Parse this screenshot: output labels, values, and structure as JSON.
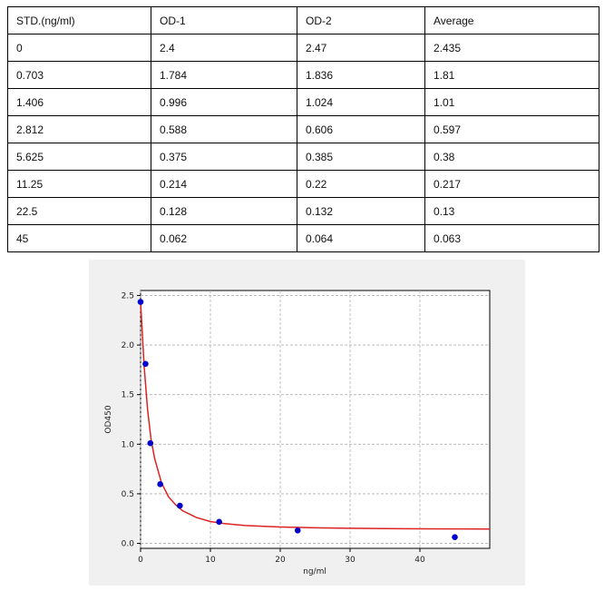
{
  "table": {
    "headers": [
      "STD.(ng/ml)",
      "OD-1",
      "OD-2",
      "Average"
    ],
    "rows": [
      [
        "0",
        "2.4",
        "2.47",
        "2.435"
      ],
      [
        "0.703",
        "1.784",
        "1.836",
        "1.81"
      ],
      [
        "1.406",
        "0.996",
        "1.024",
        "1.01"
      ],
      [
        "2.812",
        "0.588",
        "0.606",
        "0.597"
      ],
      [
        "5.625",
        "0.375",
        "0.385",
        "0.38"
      ],
      [
        "11.25",
        "0.214",
        "0.22",
        "0.217"
      ],
      [
        "22.5",
        "0.128",
        "0.132",
        "0.13"
      ],
      [
        "45",
        "0.062",
        "0.064",
        "0.063"
      ]
    ]
  },
  "chart_data": {
    "type": "scatter",
    "xlabel": "ng/ml",
    "ylabel": "OD450",
    "xlim": [
      0,
      50
    ],
    "ylim": [
      -0.05,
      2.55
    ],
    "xticks": [
      0,
      10,
      20,
      30,
      40
    ],
    "yticks": [
      0.0,
      0.5,
      1.0,
      1.5,
      2.0,
      2.5
    ],
    "grid": true,
    "series": [
      {
        "kind": "points",
        "color": "#0000cc",
        "x": [
          0,
          0.703,
          1.406,
          2.812,
          5.625,
          11.25,
          22.5,
          45
        ],
        "y": [
          2.435,
          1.81,
          1.01,
          0.597,
          0.38,
          0.217,
          0.13,
          0.063
        ]
      },
      {
        "kind": "fit-curve",
        "color": "#dd2222",
        "x": [
          0,
          0.5,
          1,
          1.5,
          2,
          3,
          4,
          5,
          6,
          8,
          10,
          12,
          15,
          20,
          25,
          30,
          35,
          40,
          45,
          50
        ],
        "y": [
          2.44,
          1.79,
          1.35,
          1.05,
          0.86,
          0.61,
          0.47,
          0.39,
          0.33,
          0.26,
          0.22,
          0.2,
          0.18,
          0.165,
          0.157,
          0.152,
          0.149,
          0.147,
          0.146,
          0.145
        ]
      }
    ]
  }
}
